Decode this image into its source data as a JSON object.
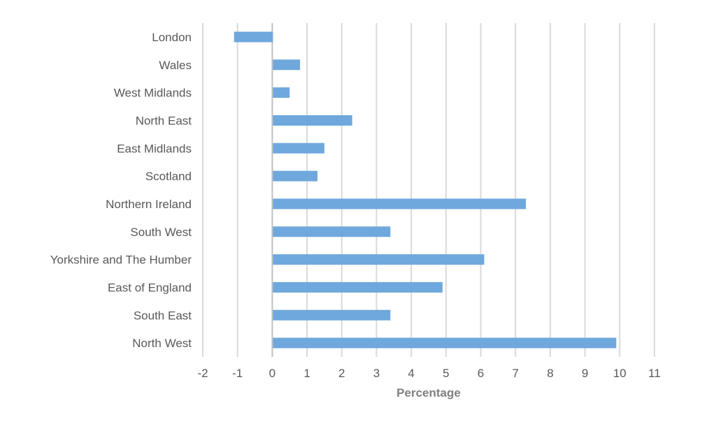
{
  "chart_data": {
    "type": "bar",
    "orientation": "horizontal",
    "categories": [
      "London",
      "Wales",
      "West Midlands",
      "North East",
      "East Midlands",
      "Scotland",
      "Northern Ireland",
      "South West",
      "Yorkshire and The Humber",
      "East of England",
      "South East",
      "North West"
    ],
    "values": [
      -1.1,
      0.8,
      0.5,
      2.3,
      1.5,
      1.3,
      7.3,
      3.4,
      6.1,
      4.9,
      3.4,
      9.9
    ],
    "xlabel": "Percentage",
    "ylabel": "",
    "xlim": [
      -2,
      11
    ],
    "xticks": [
      "-2",
      "-1",
      "0",
      "1",
      "2",
      "3",
      "4",
      "5",
      "6",
      "7",
      "8",
      "9",
      "10",
      "11"
    ],
    "grid": true,
    "bar_color": "#6fa8dc"
  }
}
